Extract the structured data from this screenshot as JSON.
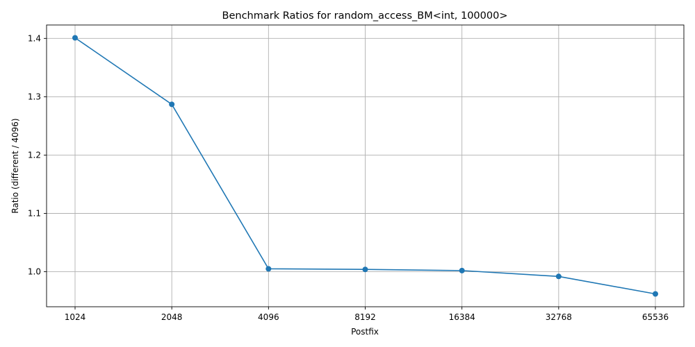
{
  "chart_data": {
    "type": "line",
    "title": "Benchmark Ratios for random_access_BM<int, 100000>",
    "xlabel": "Postfix",
    "ylabel": "Ratio (different / 4096)",
    "categories": [
      "1024",
      "2048",
      "4096",
      "8192",
      "16384",
      "32768",
      "65536"
    ],
    "series": [
      {
        "values": [
          1.401,
          1.287,
          1.005,
          1.004,
          1.002,
          0.992,
          0.962
        ]
      }
    ],
    "yticks": [
      "1.0",
      "1.1",
      "1.2",
      "1.3",
      "1.4"
    ],
    "ylim": [
      0.94,
      1.423
    ],
    "grid": true,
    "color": "#1f77b4"
  }
}
